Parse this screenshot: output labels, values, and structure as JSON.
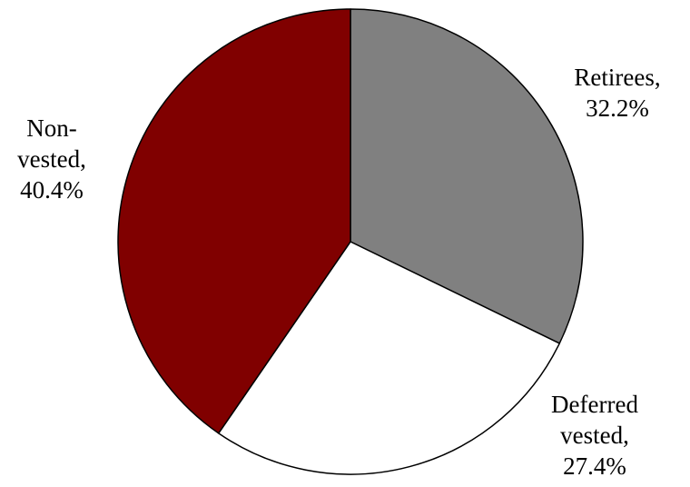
{
  "chart_data": {
    "type": "pie",
    "title": "",
    "start_angle_deg": 0,
    "direction": "clockwise",
    "slices": [
      {
        "label": "Retirees",
        "value": 32.2,
        "text": [
          "Retirees,",
          "32.2%"
        ],
        "color": "#808080"
      },
      {
        "label": "Deferred vested",
        "value": 27.4,
        "text": [
          "Deferred",
          "vested,",
          "27.4%"
        ],
        "color": "#ffffff"
      },
      {
        "label": "Non-vested",
        "value": 40.4,
        "text": [
          "Non-",
          "vested,",
          "40.4%"
        ],
        "color": "#800000"
      }
    ],
    "stroke_color": "#000000"
  }
}
